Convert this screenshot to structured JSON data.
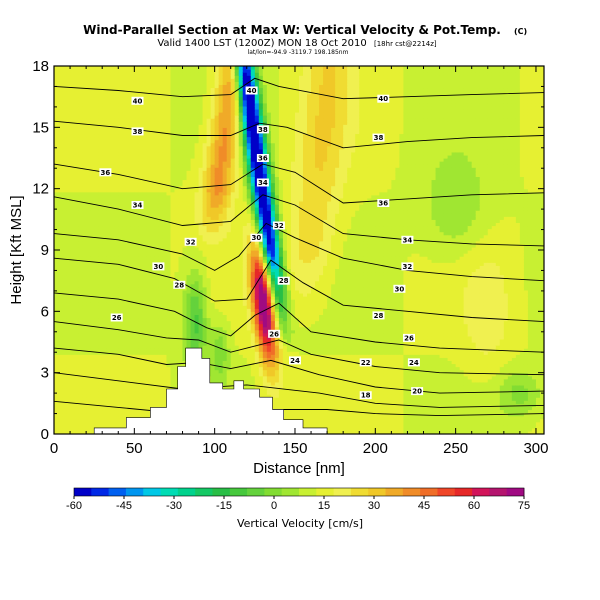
{
  "header": {
    "title": "Wind-Parallel Section at Max W: Vertical Velocity & Pot.Temp.",
    "copyright": "(C)",
    "valid_line": "Valid 1400 LST (1200Z) MON 18 Oct 2010",
    "valid_suffix": "[18hr cst@2214z]",
    "location_line": "lat/lon=-94.9 -3119.7 198.185nm"
  },
  "colorbar": {
    "label": "Vertical Velocity [cm/s]",
    "ticks": [
      "-60",
      "-45",
      "-30",
      "-15",
      "0",
      "15",
      "30",
      "45",
      "60",
      "75"
    ]
  },
  "chart_data": {
    "type": "heatmap",
    "title": "Wind-Parallel Section at Max W: Vertical Velocity & Pot.Temp.",
    "xlabel": "Distance [nm]",
    "ylabel": "Height [Kft MSL]",
    "xlim": [
      0,
      305
    ],
    "ylim": [
      0,
      18
    ],
    "x_ticks": [
      0,
      50,
      100,
      150,
      200,
      250,
      300
    ],
    "y_ticks": [
      0,
      3,
      6,
      9,
      12,
      15,
      18
    ],
    "colorscale": {
      "variable": "Vertical Velocity [cm/s]",
      "min": -60,
      "max": 75,
      "step": 5,
      "colors": [
        "#0000c8",
        "#0028e6",
        "#0060f0",
        "#0096f0",
        "#00c8e6",
        "#00dcb4",
        "#00d28c",
        "#14c864",
        "#28be46",
        "#46c83c",
        "#64d23c",
        "#82dc32",
        "#a0e632",
        "#c8f032",
        "#e6f032",
        "#f0f050",
        "#f0dc32",
        "#f0c828",
        "#f0aa28",
        "#f08c28",
        "#f06e28",
        "#f04628",
        "#e62828",
        "#d2145a",
        "#b4146e",
        "#a00a82"
      ]
    },
    "terrain_nm_kft": [
      [
        0,
        0
      ],
      [
        25,
        0
      ],
      [
        25,
        0.3
      ],
      [
        45,
        0.3
      ],
      [
        45,
        0.8
      ],
      [
        60,
        0.8
      ],
      [
        60,
        1.3
      ],
      [
        70,
        1.3
      ],
      [
        70,
        2.2
      ],
      [
        77,
        2.2
      ],
      [
        77,
        3.3
      ],
      [
        82,
        3.3
      ],
      [
        82,
        4.2
      ],
      [
        92,
        4.2
      ],
      [
        92,
        3.7
      ],
      [
        97,
        3.7
      ],
      [
        97,
        2.5
      ],
      [
        105,
        2.5
      ],
      [
        105,
        2.2
      ],
      [
        112,
        2.2
      ],
      [
        112,
        2.6
      ],
      [
        118,
        2.6
      ],
      [
        118,
        2.2
      ],
      [
        128,
        2.2
      ],
      [
        128,
        1.8
      ],
      [
        136,
        1.8
      ],
      [
        136,
        1.2
      ],
      [
        143,
        1.2
      ],
      [
        143,
        0.7
      ],
      [
        155,
        0.7
      ],
      [
        155,
        0.3
      ],
      [
        170,
        0.3
      ],
      [
        170,
        0
      ],
      [
        190,
        0
      ]
    ],
    "theta_contours": [
      {
        "label": "40",
        "x": [
          0,
          40,
          80,
          110,
          125,
          140,
          180,
          220,
          260,
          305
        ],
        "y": [
          17.0,
          16.8,
          16.5,
          16.6,
          17.4,
          17.0,
          16.4,
          16.5,
          16.6,
          16.7
        ]
      },
      {
        "label": "38",
        "x": [
          0,
          40,
          80,
          110,
          128,
          145,
          180,
          220,
          260,
          305
        ],
        "y": [
          15.3,
          15.0,
          14.6,
          14.6,
          15.2,
          15.0,
          14.0,
          14.3,
          14.5,
          14.6
        ]
      },
      {
        "label": "36",
        "x": [
          0,
          40,
          80,
          110,
          130,
          150,
          180,
          220,
          260,
          305
        ],
        "y": [
          13.2,
          12.7,
          12.0,
          12.2,
          13.2,
          12.8,
          11.3,
          11.5,
          11.7,
          11.8
        ]
      },
      {
        "label": "34",
        "x": [
          0,
          40,
          80,
          110,
          130,
          150,
          180,
          220,
          260,
          305
        ],
        "y": [
          11.6,
          11.0,
          10.2,
          10.4,
          11.7,
          11.2,
          9.8,
          9.5,
          9.3,
          9.2
        ]
      },
      {
        "label": "32",
        "x": [
          0,
          40,
          80,
          100,
          115,
          132,
          150,
          180,
          220,
          260,
          305
        ],
        "y": [
          9.8,
          9.5,
          8.8,
          8.0,
          8.7,
          10.3,
          9.6,
          8.6,
          8.0,
          7.7,
          7.5
        ]
      },
      {
        "label": "30",
        "x": [
          0,
          40,
          75,
          100,
          120,
          135,
          155,
          180,
          220,
          260,
          305
        ],
        "y": [
          8.6,
          8.3,
          7.6,
          6.5,
          6.6,
          8.5,
          7.4,
          6.3,
          6.0,
          5.7,
          5.5
        ]
      },
      {
        "label": "28",
        "x": [
          0,
          40,
          75,
          95,
          110,
          125,
          140,
          160,
          200,
          240,
          305
        ],
        "y": [
          6.9,
          6.6,
          6.0,
          5.2,
          4.8,
          5.8,
          6.4,
          5.0,
          4.5,
          4.2,
          4.0
        ]
      },
      {
        "label": "26",
        "x": [
          0,
          40,
          70,
          90,
          110,
          125,
          140,
          160,
          200,
          240,
          305
        ],
        "y": [
          5.5,
          5.1,
          4.7,
          4.6,
          4.0,
          4.3,
          4.6,
          3.9,
          3.3,
          3.0,
          2.9
        ]
      },
      {
        "label": "24",
        "x": [
          0,
          40,
          70,
          90,
          110,
          135,
          165,
          200,
          240,
          305
        ],
        "y": [
          4.2,
          3.9,
          3.4,
          3.5,
          3.2,
          3.6,
          2.9,
          2.3,
          2.0,
          2.1
        ]
      },
      {
        "label": "22",
        "x": [
          0,
          40,
          80,
          120,
          165,
          200,
          240,
          305
        ],
        "y": [
          3.0,
          2.6,
          2.2,
          2.4,
          2.0,
          1.5,
          1.3,
          1.4
        ]
      },
      {
        "label": "20",
        "x": [
          0,
          40,
          80,
          120,
          170,
          200,
          240,
          305
        ],
        "y": [
          1.6,
          1.3,
          1.0,
          1.2,
          1.2,
          1.0,
          0.9,
          1.0
        ]
      }
    ],
    "contour_labels": [
      {
        "text": "40",
        "x": 52,
        "y": 16.3
      },
      {
        "text": "40",
        "x": 123,
        "y": 16.8
      },
      {
        "text": "40",
        "x": 205,
        "y": 16.4
      },
      {
        "text": "38",
        "x": 52,
        "y": 14.8
      },
      {
        "text": "38",
        "x": 130,
        "y": 14.9
      },
      {
        "text": "38",
        "x": 202,
        "y": 14.5
      },
      {
        "text": "36",
        "x": 32,
        "y": 12.8
      },
      {
        "text": "36",
        "x": 130,
        "y": 13.5
      },
      {
        "text": "36",
        "x": 205,
        "y": 11.3
      },
      {
        "text": "34",
        "x": 52,
        "y": 11.2
      },
      {
        "text": "34",
        "x": 130,
        "y": 12.3
      },
      {
        "text": "34",
        "x": 220,
        "y": 9.5
      },
      {
        "text": "32",
        "x": 85,
        "y": 9.4
      },
      {
        "text": "32",
        "x": 140,
        "y": 10.2
      },
      {
        "text": "32",
        "x": 220,
        "y": 8.2
      },
      {
        "text": "30",
        "x": 65,
        "y": 8.2
      },
      {
        "text": "30",
        "x": 126,
        "y": 9.6
      },
      {
        "text": "30",
        "x": 215,
        "y": 7.1
      },
      {
        "text": "28",
        "x": 78,
        "y": 7.3
      },
      {
        "text": "28",
        "x": 143,
        "y": 7.5
      },
      {
        "text": "28",
        "x": 202,
        "y": 5.8
      },
      {
        "text": "26",
        "x": 39,
        "y": 5.7
      },
      {
        "text": "26",
        "x": 137,
        "y": 4.9
      },
      {
        "text": "26",
        "x": 221,
        "y": 4.7
      },
      {
        "text": "24",
        "x": 150,
        "y": 3.6
      },
      {
        "text": "24",
        "x": 224,
        "y": 3.5
      },
      {
        "text": "22",
        "x": 194,
        "y": 3.5
      },
      {
        "text": "20",
        "x": 226,
        "y": 2.1
      },
      {
        "text": "18",
        "x": 194,
        "y": 1.9
      }
    ]
  }
}
